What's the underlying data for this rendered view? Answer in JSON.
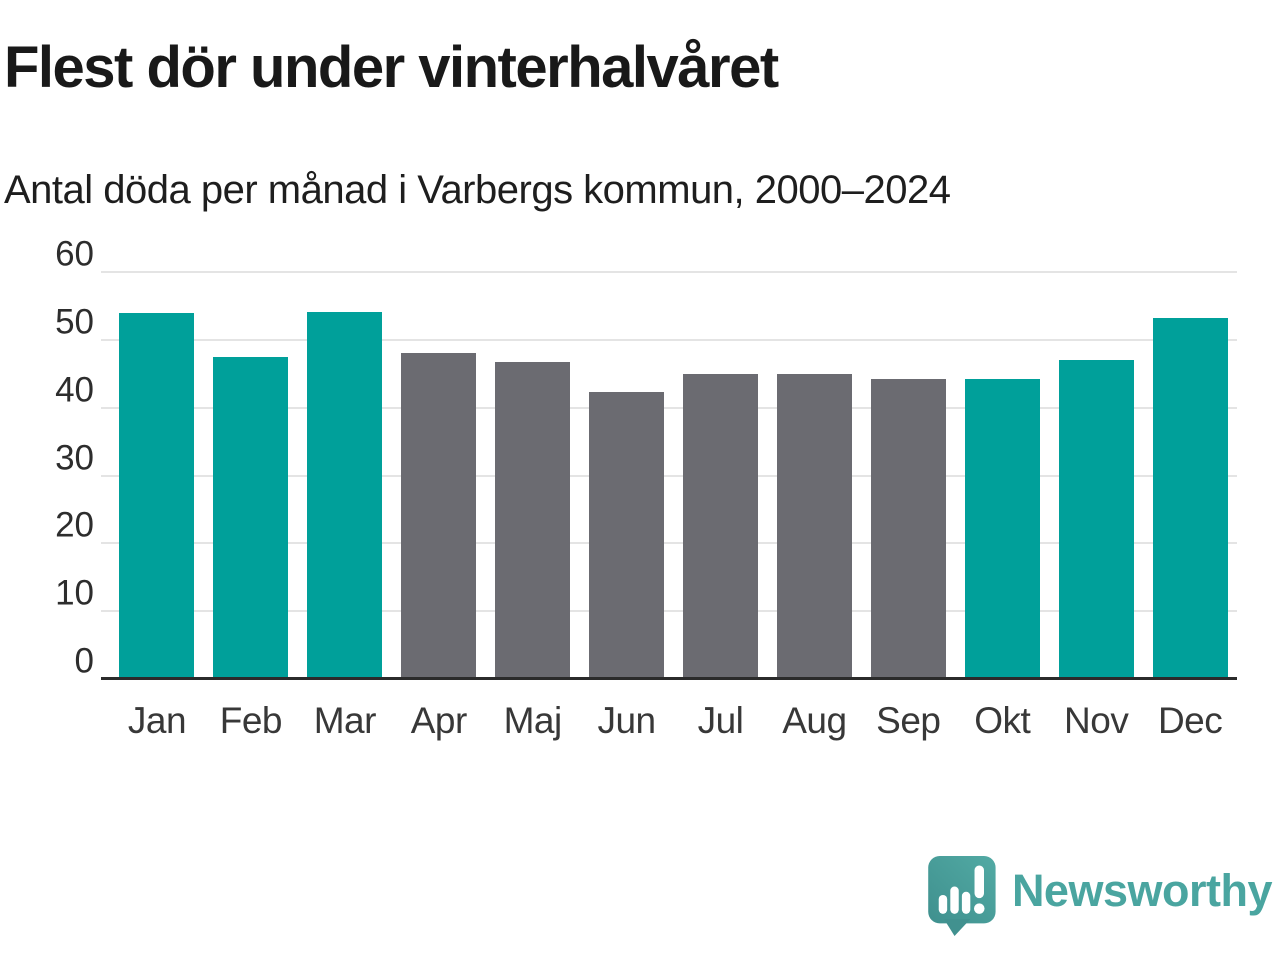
{
  "header": {
    "title": "Flest dör under vinterhalvåret",
    "subtitle": "Antal döda per månad i Varbergs kommun, 2000–2024"
  },
  "chart_data": {
    "type": "bar",
    "categories": [
      "Jan",
      "Feb",
      "Mar",
      "Apr",
      "Maj",
      "Jun",
      "Jul",
      "Aug",
      "Sep",
      "Okt",
      "Nov",
      "Dec"
    ],
    "values": [
      54.0,
      47.5,
      54.1,
      48.0,
      46.7,
      42.3,
      45.0,
      45.0,
      44.3,
      44.3,
      47.1,
      53.2
    ],
    "title": "Flest dör under vinterhalvåret",
    "subtitle": "Antal döda per månad i Varbergs kommun, 2000–2024",
    "xlabel": "",
    "ylabel": "",
    "ylim": [
      0,
      60
    ],
    "yticks": [
      0,
      10,
      20,
      30,
      40,
      50,
      60
    ],
    "grid": true,
    "legend": "none",
    "colors": {
      "winter_bar": "#00a09a",
      "summer_bar": "#6b6b71",
      "gridline": "#e4e4e4",
      "axis_line": "#2b2b2b"
    },
    "bar_color_keys": [
      "winter_bar",
      "winter_bar",
      "winter_bar",
      "summer_bar",
      "summer_bar",
      "summer_bar",
      "summer_bar",
      "summer_bar",
      "summer_bar",
      "winter_bar",
      "winter_bar",
      "winter_bar"
    ]
  },
  "branding": {
    "logo_text": "Newsworthy",
    "logo_color": "#4aa5a0",
    "logo_icon": "speech-bubble-bar-chart-icon"
  }
}
